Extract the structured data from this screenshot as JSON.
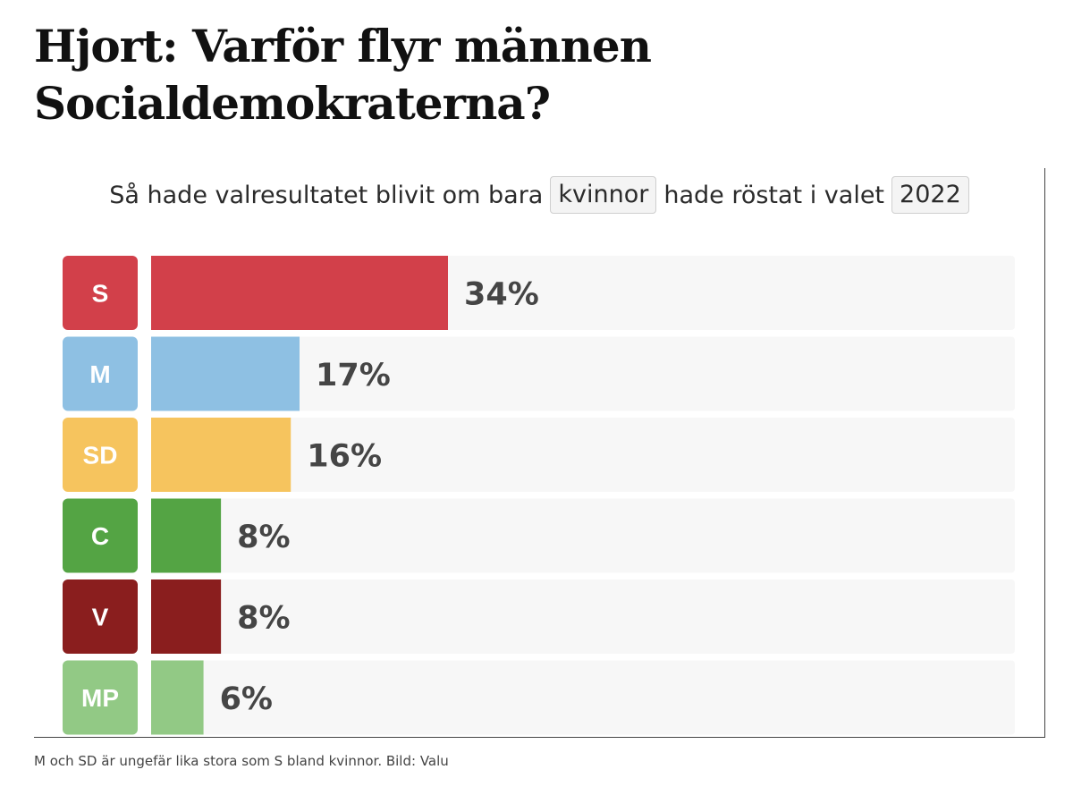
{
  "article": {
    "headline": "Hjort: Varför flyr männen Socialdemokraterna?",
    "caption": "M och SD är ungefär lika stora som S bland kvinnor. Bild: Valu"
  },
  "chart_heading": {
    "before": "Så hade valresultatet blivit om bara",
    "group_selector": "kvinnor",
    "middle": "hade röstat i valet",
    "year_selector": "2022"
  },
  "chart_data": {
    "type": "bar",
    "orientation": "horizontal",
    "title": "Så hade valresultatet blivit om bara kvinnor hade röstat i valet 2022",
    "categories": [
      "S",
      "M",
      "SD",
      "C",
      "V",
      "MP"
    ],
    "values": [
      34,
      17,
      16,
      8,
      8,
      6
    ],
    "value_labels": [
      "34%",
      "17%",
      "16%",
      "8%",
      "8%",
      "6%"
    ],
    "colors": [
      "#d2404a",
      "#8ec0e3",
      "#f6c45e",
      "#54a444",
      "#8a1e1e",
      "#92c985"
    ],
    "track_color": "#f7f7f7",
    "xlim": [
      0,
      100
    ],
    "grid": false,
    "legend": "none"
  }
}
